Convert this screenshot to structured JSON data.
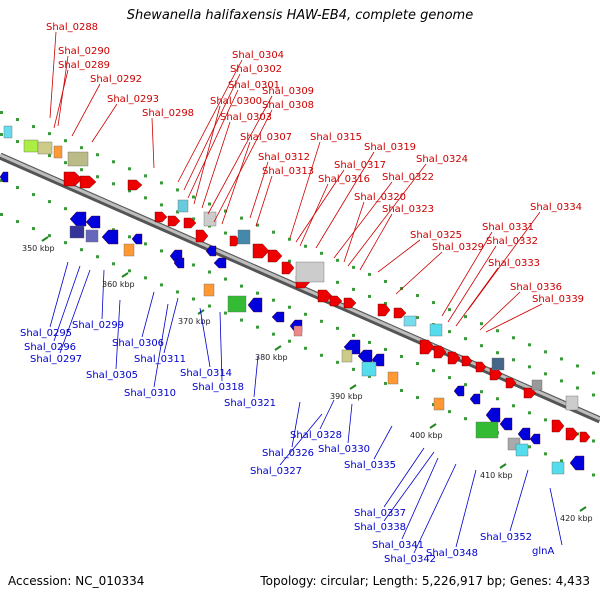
{
  "title": "Shewanella halifaxensis HAW-EB4, complete genome",
  "footer": {
    "accession": "Accession: NC_010334",
    "summary": "Topology: circular; Length: 5,226,917 bp; Genes: 4,433"
  },
  "colors": {
    "forward_label": "#cc0000",
    "reverse_label": "#0000cc",
    "forward_gene": "#ee0000",
    "reverse_gene": "#0000dd",
    "backbone": "#888888",
    "tick": "#228822"
  },
  "scale_ticks": [
    "350 kbp",
    "360 kbp",
    "370 kbp",
    "380 kbp",
    "390 kbp",
    "400 kbp",
    "410 kbp",
    "420 kbp"
  ],
  "top_labels": [
    "Shal_0288",
    "Shal_0290",
    "Shal_0289",
    "Shal_0292",
    "Shal_0293",
    "Shal_0298",
    "Shal_0304",
    "Shal_0302",
    "Shal_0301",
    "Shal_0300",
    "Shal_0303",
    "Shal_0309",
    "Shal_0308",
    "Shal_0307",
    "Shal_0312",
    "Shal_0313",
    "Shal_0315",
    "Shal_0317",
    "Shal_0316",
    "Shal_0319",
    "Shal_0320",
    "Shal_0322",
    "Shal_0324",
    "Shal_0323",
    "Shal_0325",
    "Shal_0329",
    "Shal_0331",
    "Shal_0332",
    "Shal_0333",
    "Shal_0334",
    "Shal_0336",
    "Shal_0339"
  ],
  "bottom_labels": [
    "Shal_0295",
    "Shal_0296",
    "Shal_0297",
    "Shal_0299",
    "Shal_0305",
    "Shal_0306",
    "Shal_0310",
    "Shal_0311",
    "Shal_0314",
    "Shal_0318",
    "Shal_0321",
    "Shal_0326",
    "Shal_0328",
    "Shal_0327",
    "Shal_0330",
    "Shal_0335",
    "Shal_0337",
    "Shal_0338",
    "Shal_0341",
    "Shal_0342",
    "Shal_0348",
    "Shal_0352",
    "glnA"
  ]
}
